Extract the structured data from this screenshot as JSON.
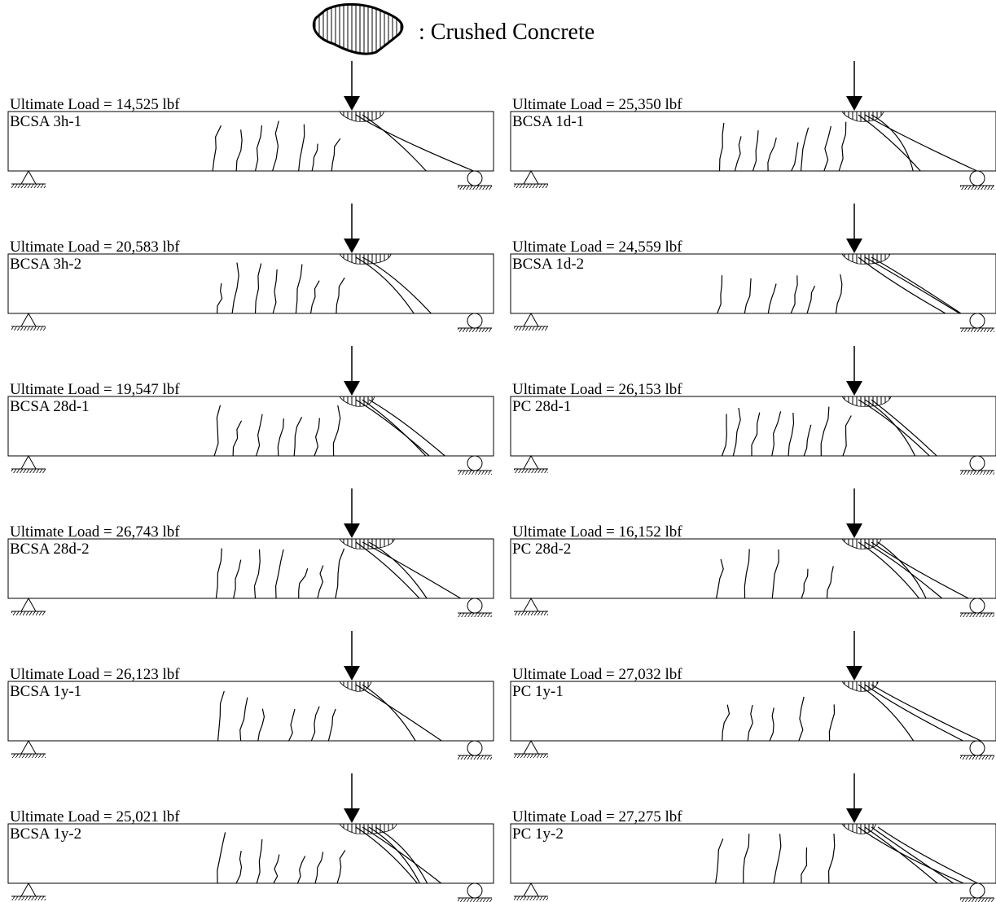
{
  "legend": {
    "label": ": Crushed Concrete"
  },
  "beams": [
    {
      "load": "Ultimate Load = 14,525 lbf",
      "name": "BCSA 3h-1"
    },
    {
      "load": "Ultimate Load = 25,350 lbf",
      "name": "BCSA 1d-1"
    },
    {
      "load": "Ultimate Load = 20,583 lbf",
      "name": "BCSA 3h-2"
    },
    {
      "load": "Ultimate Load = 24,559 lbf",
      "name": "BCSA 1d-2"
    },
    {
      "load": "Ultimate Load = 19,547 lbf",
      "name": "BCSA 28d-1"
    },
    {
      "load": "Ultimate Load = 26,153 lbf",
      "name": "PC 28d-1"
    },
    {
      "load": "Ultimate Load = 26,743 lbf",
      "name": "BCSA 28d-2"
    },
    {
      "load": "Ultimate Load = 16,152 lbf",
      "name": "PC 28d-2"
    },
    {
      "load": "Ultimate Load = 26,123 lbf",
      "name": "BCSA 1y-1"
    },
    {
      "load": "Ultimate Load = 27,032 lbf",
      "name": "PC 1y-1"
    },
    {
      "load": "Ultimate Load = 25,021 lbf",
      "name": "BCSA 1y-2"
    },
    {
      "load": "Ultimate Load = 27,275 lbf",
      "name": "PC 1y-2"
    }
  ]
}
